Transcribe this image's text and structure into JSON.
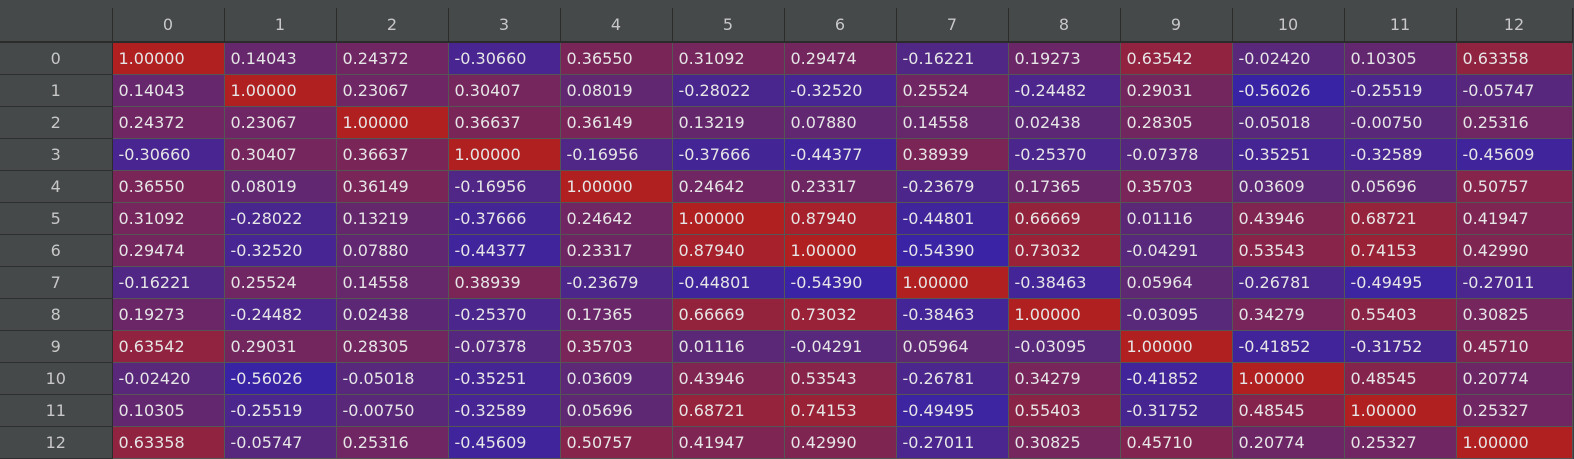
{
  "table": {
    "columns": [
      "0",
      "1",
      "2",
      "3",
      "4",
      "5",
      "6",
      "7",
      "8",
      "9",
      "10",
      "11",
      "12"
    ],
    "rows": [
      {
        "index": "0",
        "values": [
          "1.00000",
          "0.14043",
          "0.24372",
          "-0.30660",
          "0.36550",
          "0.31092",
          "0.29474",
          "-0.16221",
          "0.19273",
          "0.63542",
          "-0.02420",
          "0.10305",
          "0.63358"
        ]
      },
      {
        "index": "1",
        "values": [
          "0.14043",
          "1.00000",
          "0.23067",
          "0.30407",
          "0.08019",
          "-0.28022",
          "-0.32520",
          "0.25524",
          "-0.24482",
          "0.29031",
          "-0.56026",
          "-0.25519",
          "-0.05747"
        ]
      },
      {
        "index": "2",
        "values": [
          "0.24372",
          "0.23067",
          "1.00000",
          "0.36637",
          "0.36149",
          "0.13219",
          "0.07880",
          "0.14558",
          "0.02438",
          "0.28305",
          "-0.05018",
          "-0.00750",
          "0.25316"
        ]
      },
      {
        "index": "3",
        "values": [
          "-0.30660",
          "0.30407",
          "0.36637",
          "1.00000",
          "-0.16956",
          "-0.37666",
          "-0.44377",
          "0.38939",
          "-0.25370",
          "-0.07378",
          "-0.35251",
          "-0.32589",
          "-0.45609"
        ]
      },
      {
        "index": "4",
        "values": [
          "0.36550",
          "0.08019",
          "0.36149",
          "-0.16956",
          "1.00000",
          "0.24642",
          "0.23317",
          "-0.23679",
          "0.17365",
          "0.35703",
          "0.03609",
          "0.05696",
          "0.50757"
        ]
      },
      {
        "index": "5",
        "values": [
          "0.31092",
          "-0.28022",
          "0.13219",
          "-0.37666",
          "0.24642",
          "1.00000",
          "0.87940",
          "-0.44801",
          "0.66669",
          "0.01116",
          "0.43946",
          "0.68721",
          "0.41947"
        ]
      },
      {
        "index": "6",
        "values": [
          "0.29474",
          "-0.32520",
          "0.07880",
          "-0.44377",
          "0.23317",
          "0.87940",
          "1.00000",
          "-0.54390",
          "0.73032",
          "-0.04291",
          "0.53543",
          "0.74153",
          "0.42990"
        ]
      },
      {
        "index": "7",
        "values": [
          "-0.16221",
          "0.25524",
          "0.14558",
          "0.38939",
          "-0.23679",
          "-0.44801",
          "-0.54390",
          "1.00000",
          "-0.38463",
          "0.05964",
          "-0.26781",
          "-0.49495",
          "-0.27011"
        ]
      },
      {
        "index": "8",
        "values": [
          "0.19273",
          "-0.24482",
          "0.02438",
          "-0.25370",
          "0.17365",
          "0.66669",
          "0.73032",
          "-0.38463",
          "1.00000",
          "-0.03095",
          "0.34279",
          "0.55403",
          "0.30825"
        ]
      },
      {
        "index": "9",
        "values": [
          "0.63542",
          "0.29031",
          "0.28305",
          "-0.07378",
          "0.35703",
          "0.01116",
          "-0.04291",
          "0.05964",
          "-0.03095",
          "1.00000",
          "-0.41852",
          "-0.31752",
          "0.45710"
        ]
      },
      {
        "index": "10",
        "values": [
          "-0.02420",
          "-0.56026",
          "-0.05018",
          "-0.35251",
          "0.03609",
          "0.43946",
          "0.53543",
          "-0.26781",
          "0.34279",
          "-0.41852",
          "1.00000",
          "0.48545",
          "0.20774"
        ]
      },
      {
        "index": "11",
        "values": [
          "0.10305",
          "-0.25519",
          "-0.00750",
          "-0.32589",
          "0.05696",
          "0.68721",
          "0.74153",
          "-0.49495",
          "0.55403",
          "-0.31752",
          "0.48545",
          "1.00000",
          "0.25327"
        ]
      },
      {
        "index": "12",
        "values": [
          "0.63358",
          "-0.05747",
          "0.25316",
          "-0.45609",
          "0.50757",
          "0.41947",
          "0.42990",
          "-0.27011",
          "0.30825",
          "0.45710",
          "0.20774",
          "0.25327",
          "1.00000"
        ]
      }
    ]
  },
  "colors": {
    "positive": "#b02020",
    "negative": "#1f1fc8",
    "header_bg": "#45494a",
    "header_text": "#c8c8c8",
    "cell_text": "#e6e6e6"
  }
}
